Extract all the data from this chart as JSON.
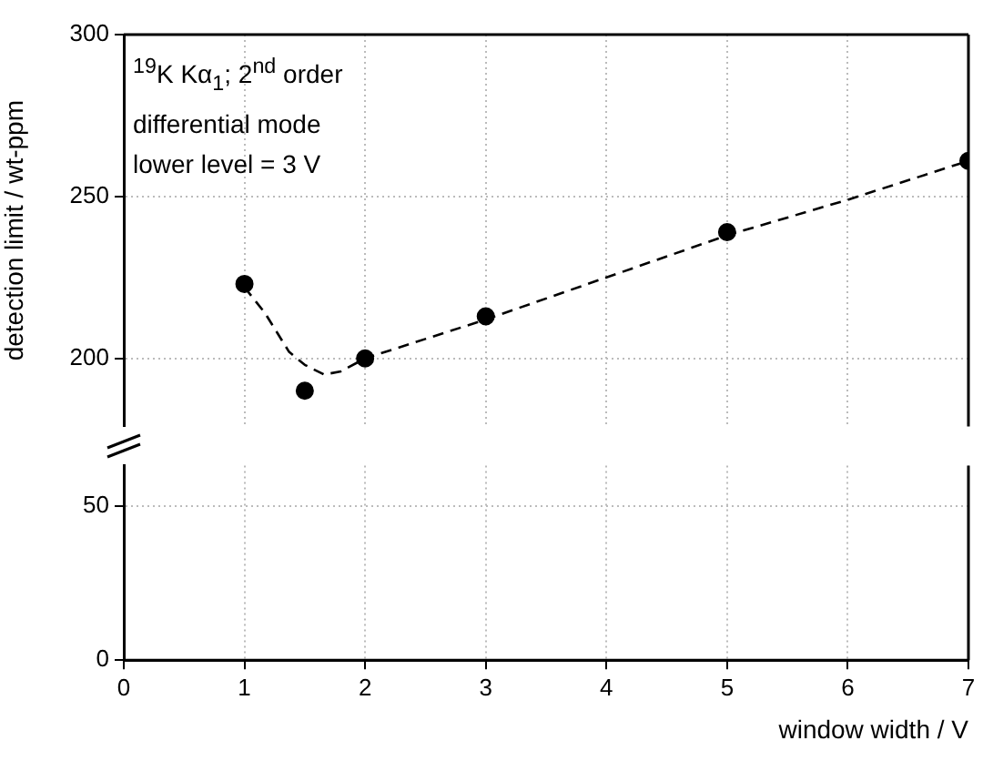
{
  "chart_data": [
    {
      "type": "scatter",
      "ylabel": "detection limit / wt-ppm",
      "annotations": [
        "$^{19}$K Kα$_{1}$; 2$^{nd}$ order",
        "differential mode",
        "lower level = 3 V"
      ],
      "xlim": [
        0,
        7
      ],
      "xticks": [
        {
          "value": 0,
          "label": null
        },
        {
          "value": 1,
          "label": null
        },
        {
          "value": 2,
          "label": null
        },
        {
          "value": 3,
          "label": null
        },
        {
          "value": 4,
          "label": null
        },
        {
          "value": 5,
          "label": null
        },
        {
          "value": 6,
          "label": null
        },
        {
          "value": 7,
          "label": null
        }
      ],
      "ylim": [
        179,
        300
      ],
      "yticks": [
        200,
        250,
        300
      ],
      "tick_labels": "y",
      "grid": true,
      "legend": false,
      "series": [
        {
          "color": "#000000",
          "marker": "circle",
          "x": [
            1,
            1.5,
            2,
            3,
            5,
            7
          ],
          "values": [
            223,
            190,
            200,
            213,
            239,
            261
          ]
        },
        {
          "type": "line",
          "color": "#000000",
          "marker": "none",
          "line_style": "dashed",
          "x": [
            1,
            1.17,
            1.37,
            1.5,
            1.66,
            1.8,
            2,
            3,
            4,
            5,
            6,
            7
          ],
          "values": [
            222,
            214,
            202,
            198,
            195,
            196,
            200,
            212,
            225,
            238,
            249,
            261
          ]
        }
      ]
    },
    {
      "type": "line",
      "xlabel": "window width / V",
      "xlim": [
        0,
        7
      ],
      "xticks": [
        0,
        1,
        2,
        3,
        4,
        5,
        6,
        7
      ],
      "ylim": [
        0,
        63
      ],
      "yticks": [
        0,
        50
      ],
      "grid": true,
      "legend": false
    }
  ]
}
